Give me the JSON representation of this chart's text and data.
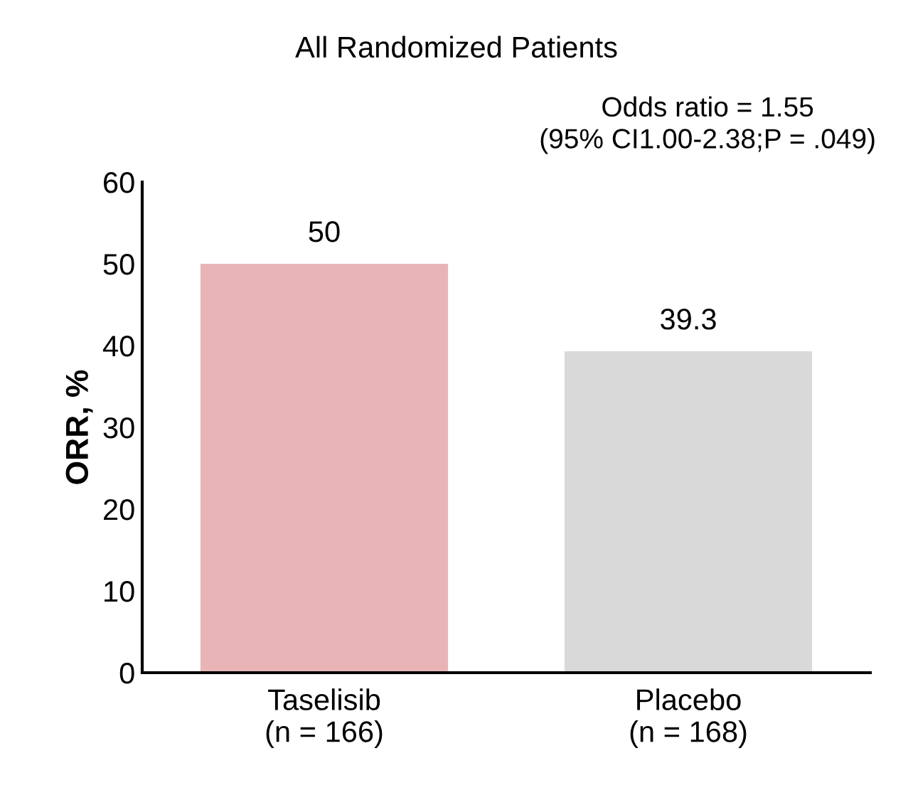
{
  "chart_data": {
    "type": "bar",
    "title": "All Randomized Patients",
    "ylabel": "ORR, %",
    "categories": [
      "Taselisib\n(n = 166)",
      "Placebo\n(n = 168)"
    ],
    "values": [
      50,
      39.3
    ],
    "colors": [
      "#e8b4b6",
      "#d9d9d9"
    ],
    "ylim": [
      0,
      60
    ],
    "yticks": [
      0,
      10,
      20,
      30,
      40,
      50,
      60
    ],
    "data_labels": true,
    "grid": false,
    "legend": false,
    "annotations": [
      "Odds ratio = 1.55\n(95% CI1.00-2.38;P = .049)"
    ]
  }
}
